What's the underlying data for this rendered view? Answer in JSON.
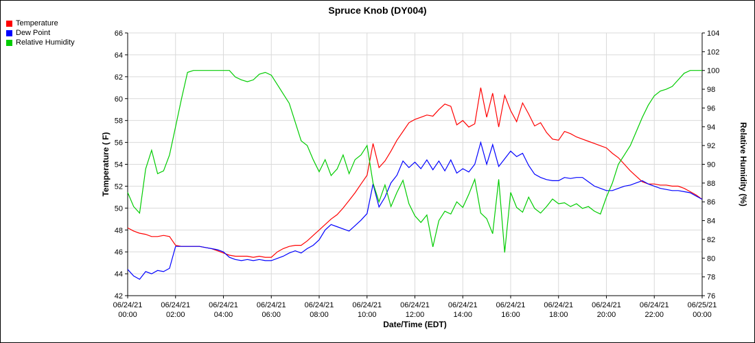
{
  "title": "Spruce Knob (DY004)",
  "legend": {
    "items": [
      {
        "label": "Temperature",
        "color": "#ff0000"
      },
      {
        "label": "Dew Point",
        "color": "#0000ff"
      },
      {
        "label": "Relative Humidity",
        "color": "#00cc00"
      }
    ]
  },
  "chart_data": {
    "type": "line",
    "title": "Spruce Knob (DY004)",
    "xlabel": "Date/Time (EDT)",
    "ylabel_left": "Temperature ( F)",
    "ylabel_right": "Relative Humidity (%)",
    "y_left_range": [
      42,
      66
    ],
    "y_left_tick_step": 2,
    "y_right_range": [
      76,
      104
    ],
    "y_right_tick_step": 2,
    "x_range_hours": [
      0,
      24
    ],
    "grid": true,
    "legend_position": "top-left",
    "grid_color": "#d9d9d9",
    "x_ticks": [
      {
        "hour": 0,
        "date": "06/24/21",
        "time": "00:00"
      },
      {
        "hour": 2,
        "date": "06/24/21",
        "time": "02:00"
      },
      {
        "hour": 4,
        "date": "06/24/21",
        "time": "04:00"
      },
      {
        "hour": 6,
        "date": "06/24/21",
        "time": "06:00"
      },
      {
        "hour": 8,
        "date": "06/24/21",
        "time": "08:00"
      },
      {
        "hour": 10,
        "date": "06/24/21",
        "time": "10:00"
      },
      {
        "hour": 12,
        "date": "06/24/21",
        "time": "12:00"
      },
      {
        "hour": 14,
        "date": "06/24/21",
        "time": "14:00"
      },
      {
        "hour": 16,
        "date": "06/24/21",
        "time": "16:00"
      },
      {
        "hour": 18,
        "date": "06/24/21",
        "time": "18:00"
      },
      {
        "hour": 20,
        "date": "06/24/21",
        "time": "20:00"
      },
      {
        "hour": 22,
        "date": "06/24/21",
        "time": "22:00"
      },
      {
        "hour": 24,
        "date": "06/25/21",
        "time": "00:00"
      }
    ],
    "x_hours": [
      0,
      0.25,
      0.5,
      0.75,
      1,
      1.25,
      1.5,
      1.75,
      2,
      2.25,
      2.5,
      2.75,
      3,
      3.25,
      3.5,
      3.75,
      4,
      4.25,
      4.5,
      4.75,
      5,
      5.25,
      5.5,
      5.75,
      6,
      6.25,
      6.5,
      6.75,
      7,
      7.25,
      7.5,
      7.75,
      8,
      8.25,
      8.5,
      8.75,
      9,
      9.25,
      9.5,
      9.75,
      10,
      10.25,
      10.5,
      10.75,
      11,
      11.25,
      11.5,
      11.75,
      12,
      12.25,
      12.5,
      12.75,
      13,
      13.25,
      13.5,
      13.75,
      14,
      14.25,
      14.5,
      14.75,
      15,
      15.25,
      15.5,
      15.75,
      16,
      16.25,
      16.5,
      16.75,
      17,
      17.25,
      17.5,
      17.75,
      18,
      18.25,
      18.5,
      18.75,
      19,
      19.25,
      19.5,
      19.75,
      20,
      20.25,
      20.5,
      20.75,
      21,
      21.25,
      21.5,
      21.75,
      22,
      22.25,
      22.5,
      22.75,
      23,
      23.25,
      23.5,
      23.75,
      24
    ],
    "series": [
      {
        "name": "Temperature",
        "axis": "left",
        "color": "#ff0000",
        "values": [
          48.2,
          47.9,
          47.7,
          47.6,
          47.4,
          47.4,
          47.5,
          47.4,
          46.6,
          46.5,
          46.5,
          46.5,
          46.5,
          46.4,
          46.3,
          46.1,
          45.9,
          45.7,
          45.6,
          45.6,
          45.6,
          45.5,
          45.6,
          45.5,
          45.5,
          46.0,
          46.3,
          46.5,
          46.6,
          46.6,
          47.0,
          47.5,
          48.0,
          48.5,
          49.0,
          49.4,
          50.0,
          50.7,
          51.4,
          52.2,
          53.0,
          55.9,
          53.7,
          54.3,
          55.2,
          56.2,
          57.0,
          57.8,
          58.1,
          58.3,
          58.5,
          58.4,
          59.0,
          59.5,
          59.3,
          57.6,
          58.0,
          57.4,
          57.7,
          61.0,
          58.3,
          60.5,
          57.4,
          60.3,
          58.9,
          57.9,
          59.6,
          58.6,
          57.5,
          57.8,
          56.9,
          56.3,
          56.2,
          57.0,
          56.8,
          56.5,
          56.3,
          56.1,
          55.9,
          55.7,
          55.5,
          55.0,
          54.6,
          54.0,
          53.4,
          52.9,
          52.4,
          52.2,
          52.2,
          52.1,
          52.1,
          52.0,
          52.0,
          51.8,
          51.5,
          51.2,
          50.8
        ]
      },
      {
        "name": "Dew Point",
        "axis": "left",
        "color": "#0000ff",
        "values": [
          44.4,
          43.8,
          43.5,
          44.2,
          44.0,
          44.3,
          44.2,
          44.5,
          46.5,
          46.5,
          46.5,
          46.5,
          46.5,
          46.4,
          46.3,
          46.2,
          46.0,
          45.5,
          45.3,
          45.2,
          45.3,
          45.2,
          45.3,
          45.2,
          45.2,
          45.4,
          45.6,
          45.9,
          46.1,
          45.9,
          46.3,
          46.6,
          47.1,
          48.0,
          48.5,
          48.3,
          48.1,
          47.9,
          48.4,
          48.9,
          49.5,
          52.2,
          50.1,
          51.0,
          52.3,
          53.0,
          54.3,
          53.7,
          54.2,
          53.6,
          54.4,
          53.5,
          54.3,
          53.4,
          54.4,
          53.2,
          53.6,
          53.3,
          54.0,
          56.0,
          54.0,
          55.8,
          53.8,
          54.5,
          55.2,
          54.7,
          55.0,
          53.9,
          53.1,
          52.8,
          52.6,
          52.5,
          52.5,
          52.8,
          52.7,
          52.8,
          52.8,
          52.4,
          52.0,
          51.8,
          51.6,
          51.6,
          51.8,
          52.0,
          52.1,
          52.3,
          52.5,
          52.2,
          52.0,
          51.8,
          51.7,
          51.6,
          51.6,
          51.5,
          51.4,
          51.1,
          50.8
        ]
      },
      {
        "name": "Relative Humidity",
        "axis": "right",
        "color": "#00cc00",
        "values": [
          87.0,
          85.5,
          84.8,
          89.5,
          91.5,
          89.0,
          89.3,
          91.0,
          94.0,
          97.0,
          99.8,
          100.0,
          100.0,
          100.0,
          100.0,
          100.0,
          100.0,
          100.0,
          99.3,
          99.0,
          98.8,
          99.0,
          99.6,
          99.8,
          99.5,
          98.5,
          97.5,
          96.5,
          94.5,
          92.5,
          92.0,
          90.5,
          89.2,
          90.5,
          88.8,
          89.5,
          91.0,
          89.0,
          90.5,
          91.0,
          92.0,
          88.0,
          86.0,
          87.8,
          85.5,
          87.0,
          88.3,
          85.8,
          84.5,
          83.8,
          84.6,
          81.2,
          84.0,
          85.0,
          84.7,
          86.0,
          85.4,
          86.8,
          88.4,
          84.8,
          84.2,
          82.6,
          88.4,
          80.6,
          87.0,
          85.4,
          84.9,
          86.5,
          85.3,
          84.8,
          85.5,
          86.3,
          85.8,
          85.9,
          85.5,
          85.8,
          85.3,
          85.5,
          85.0,
          84.7,
          86.5,
          88.0,
          90.0,
          91.0,
          92.0,
          93.5,
          95.0,
          96.3,
          97.3,
          97.8,
          98.0,
          98.3,
          99.0,
          99.7,
          100.0,
          100.0,
          100.0
        ]
      }
    ]
  }
}
